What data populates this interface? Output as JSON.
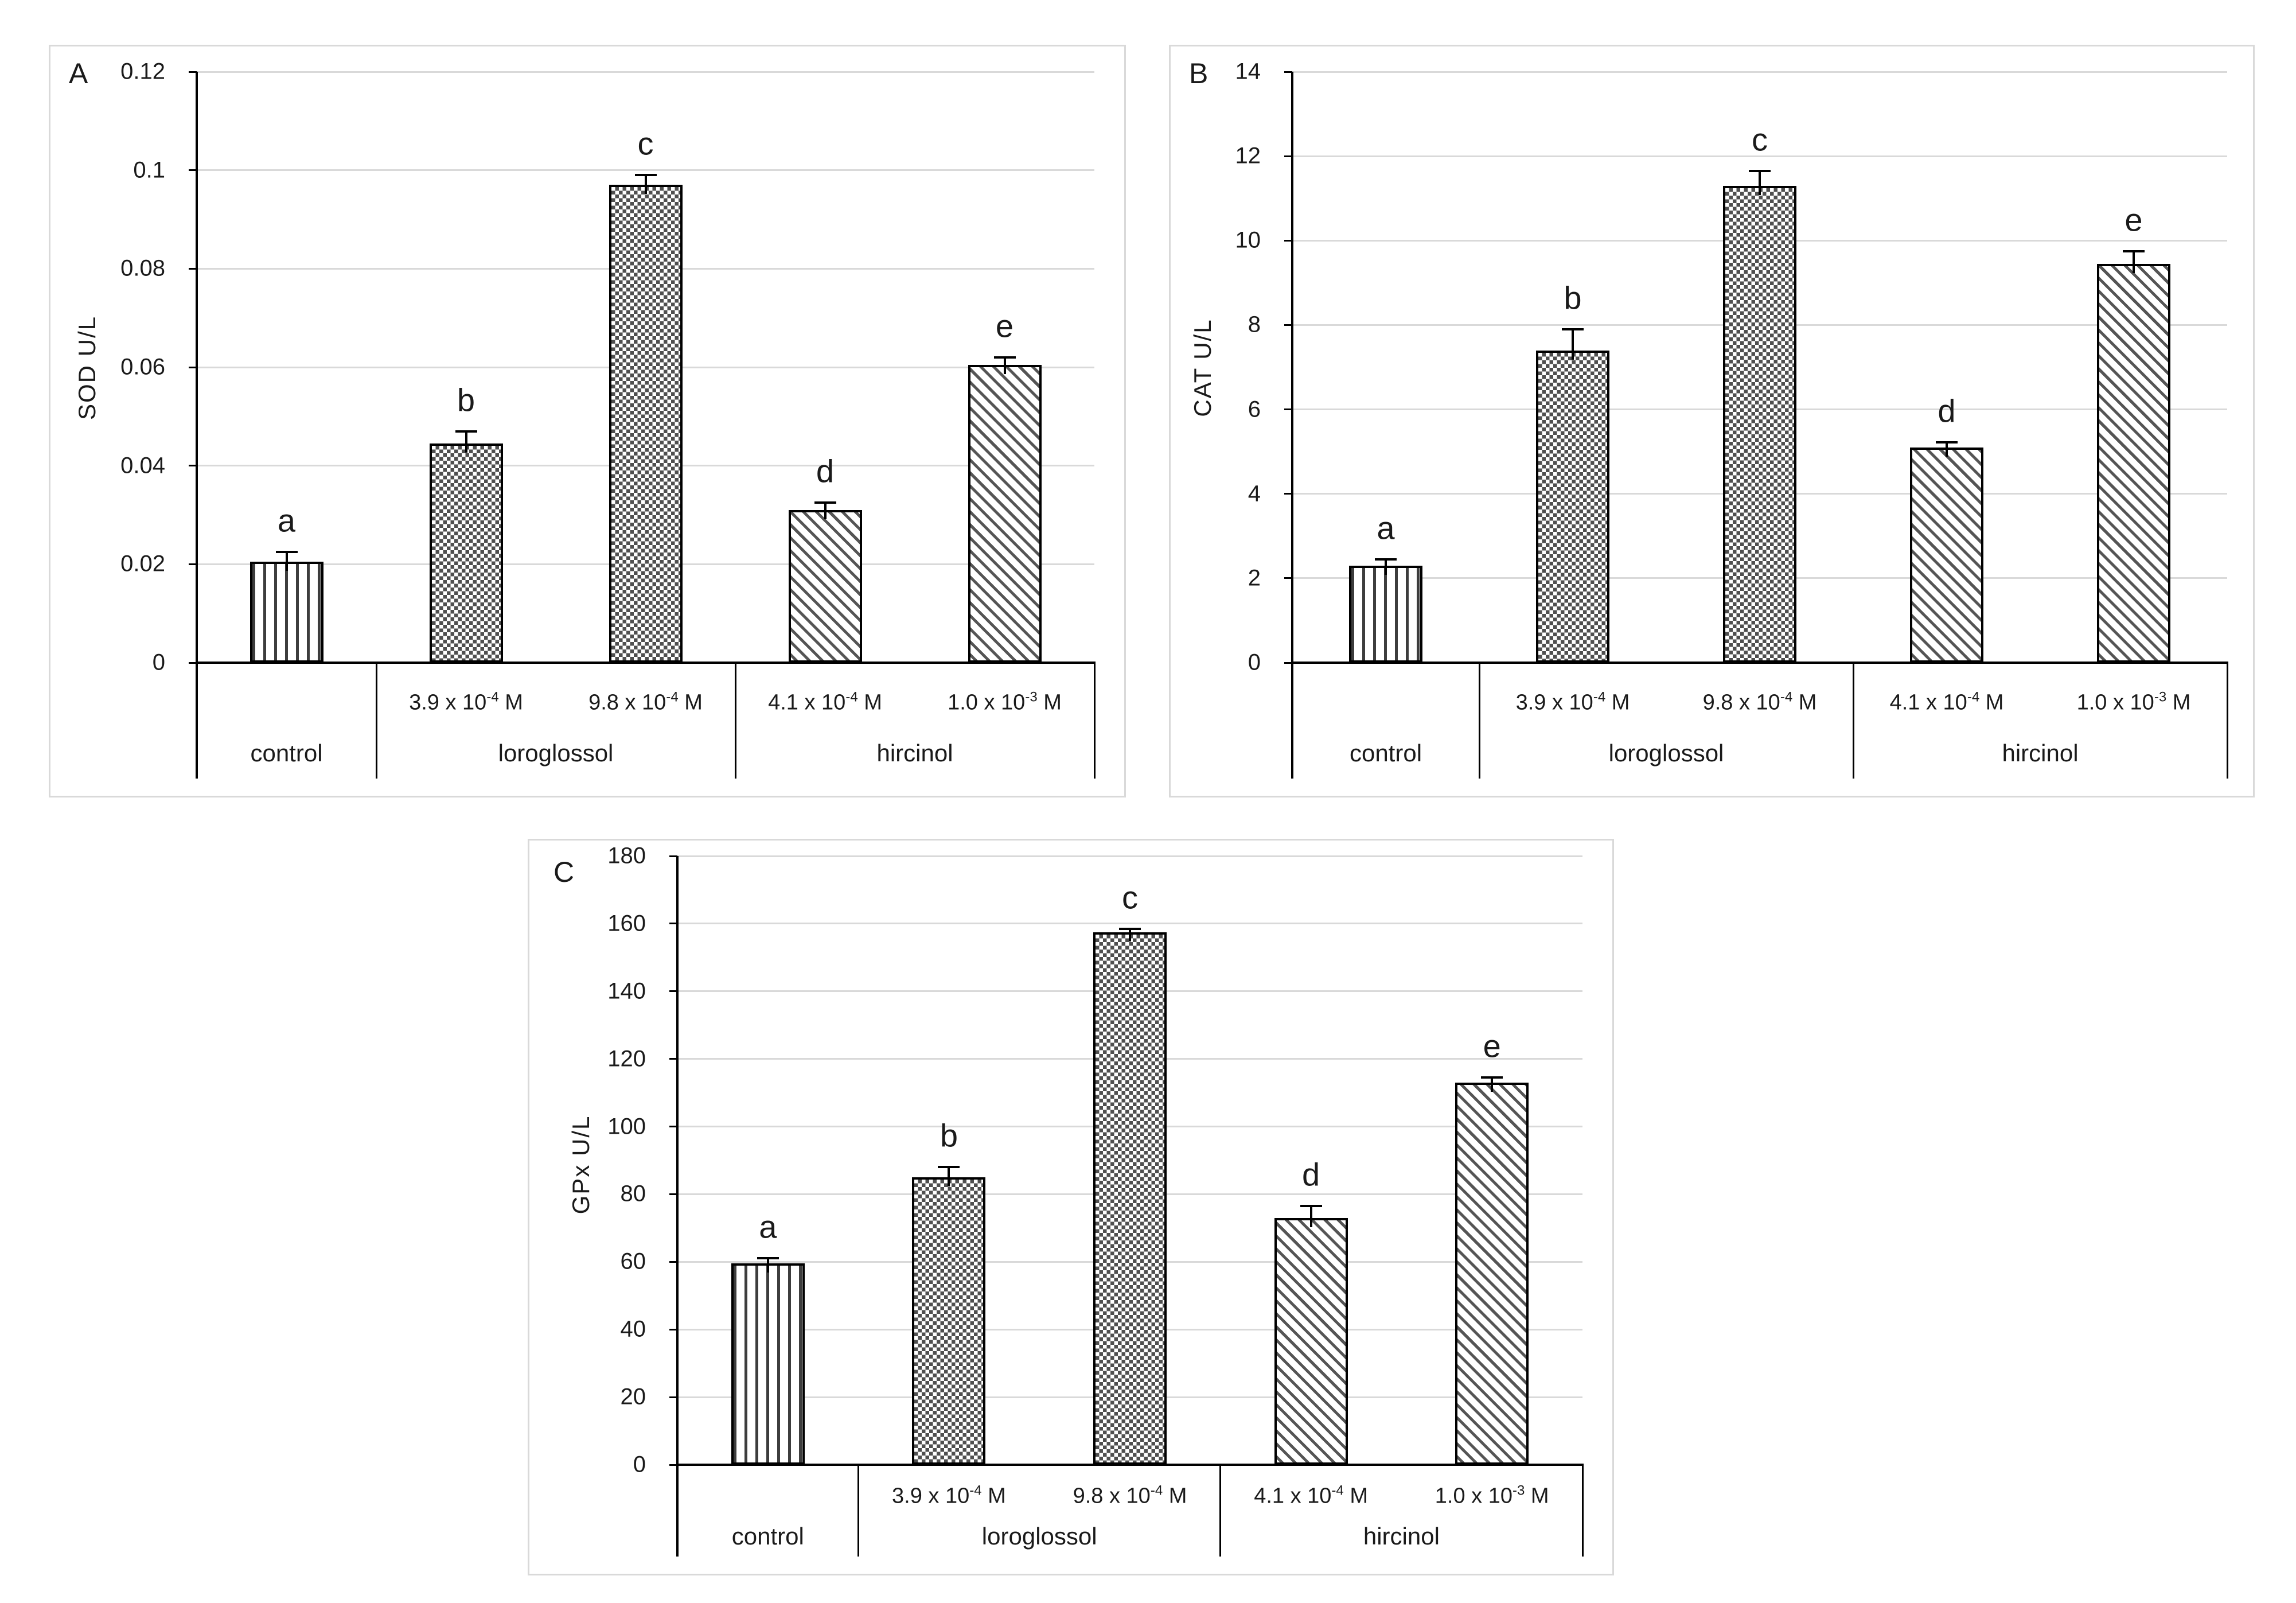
{
  "figure": {
    "description": "Three-panel bar figure of antioxidant enzyme activities",
    "panel_letters": [
      "A",
      "B",
      "C"
    ],
    "colors": {
      "background": "#ffffff",
      "panel_border": "#d9d9d9",
      "gridline": "#d9d9d9",
      "axis": "#000000",
      "bar_border": "#000000",
      "pattern_ink": "#4f4f4f",
      "text": "#1a1a1a"
    }
  },
  "chart_data": [
    {
      "type": "bar",
      "panel": "A",
      "ylabel": "SOD U/L",
      "ylim": [
        0,
        0.12
      ],
      "ytick_step": 0.02,
      "ytick_labels": [
        "0.12",
        "0.1",
        "0.08",
        "0.06",
        "0.04",
        "0.02",
        "0"
      ],
      "grid": true,
      "legend_position": "none",
      "groups": [
        {
          "label": "control",
          "bar_count": 1
        },
        {
          "label": "loroglossol",
          "bar_count": 2
        },
        {
          "label": "hircinol",
          "bar_count": 2
        }
      ],
      "categories": [
        "control",
        "3.9 x 10^-4 M",
        "9.8 x 10^-4 M",
        "4.1 x 10^-4 M",
        "1.0 x 10^-3 M"
      ],
      "category_sublabels": [
        null,
        {
          "base": "3.9 x 10",
          "sup": "-4",
          "tail": " M"
        },
        {
          "base": "9.8 x 10",
          "sup": "-4",
          "tail": " M"
        },
        {
          "base": "4.1 x 10",
          "sup": "-4",
          "tail": " M"
        },
        {
          "base": "1.0 x 10",
          "sup": "-3",
          "tail": " M"
        }
      ],
      "values": [
        0.0205,
        0.0445,
        0.097,
        0.031,
        0.0605
      ],
      "errors": [
        0.002,
        0.0025,
        0.002,
        0.0015,
        0.0015
      ],
      "sig_letters": [
        "a",
        "b",
        "c",
        "d",
        "e"
      ],
      "patterns": [
        "vertical-stripes",
        "checkerboard",
        "checkerboard",
        "diagonal-stripes",
        "diagonal-stripes"
      ]
    },
    {
      "type": "bar",
      "panel": "B",
      "ylabel": "CAT U/L",
      "ylim": [
        0,
        14
      ],
      "ytick_step": 2,
      "ytick_labels": [
        "14",
        "12",
        "10",
        "8",
        "6",
        "4",
        "2",
        "0"
      ],
      "grid": true,
      "legend_position": "none",
      "groups": [
        {
          "label": "control",
          "bar_count": 1
        },
        {
          "label": "loroglossol",
          "bar_count": 2
        },
        {
          "label": "hircinol",
          "bar_count": 2
        }
      ],
      "categories": [
        "control",
        "3.9 x 10^-4 M",
        "9.8 x 10^-4 M",
        "4.1 x 10^-4 M",
        "1.0 x 10^-3 M"
      ],
      "category_sublabels": [
        null,
        {
          "base": "3.9 x 10",
          "sup": "-4",
          "tail": " M"
        },
        {
          "base": "9.8 x 10",
          "sup": "-4",
          "tail": " M"
        },
        {
          "base": "4.1 x 10",
          "sup": "-4",
          "tail": " M"
        },
        {
          "base": "1.0 x 10",
          "sup": "-3",
          "tail": " M"
        }
      ],
      "values": [
        2.3,
        7.4,
        11.3,
        5.1,
        9.45
      ],
      "errors": [
        0.15,
        0.5,
        0.35,
        0.12,
        0.3
      ],
      "sig_letters": [
        "a",
        "b",
        "c",
        "d",
        "e"
      ],
      "patterns": [
        "vertical-stripes",
        "checkerboard",
        "checkerboard",
        "diagonal-stripes",
        "diagonal-stripes"
      ]
    },
    {
      "type": "bar",
      "panel": "C",
      "ylabel": "GPx U/L",
      "ylim": [
        0,
        180
      ],
      "ytick_step": 20,
      "ytick_labels": [
        "180",
        "160",
        "140",
        "120",
        "100",
        "80",
        "60",
        "40",
        "20",
        "0"
      ],
      "grid": true,
      "legend_position": "none",
      "groups": [
        {
          "label": "control",
          "bar_count": 1
        },
        {
          "label": "loroglossol",
          "bar_count": 2
        },
        {
          "label": "hircinol",
          "bar_count": 2
        }
      ],
      "categories": [
        "control",
        "3.9 x 10^-4 M",
        "9.8 x 10^-4 M",
        "4.1 x 10^-4 M",
        "1.0 x 10^-3 M"
      ],
      "category_sublabels": [
        null,
        {
          "base": "3.9 x 10",
          "sup": "-4",
          "tail": " M"
        },
        {
          "base": "9.8 x 10",
          "sup": "-4",
          "tail": " M"
        },
        {
          "base": "4.1 x 10",
          "sup": "-4",
          "tail": " M"
        },
        {
          "base": "1.0 x 10",
          "sup": "-3",
          "tail": " M"
        }
      ],
      "values": [
        59.5,
        85,
        157.5,
        73,
        113
      ],
      "errors": [
        1.5,
        3,
        1,
        3.5,
        1.5
      ],
      "sig_letters": [
        "a",
        "b",
        "c",
        "d",
        "e"
      ],
      "patterns": [
        "vertical-stripes",
        "checkerboard",
        "checkerboard",
        "diagonal-stripes",
        "diagonal-stripes"
      ]
    }
  ]
}
